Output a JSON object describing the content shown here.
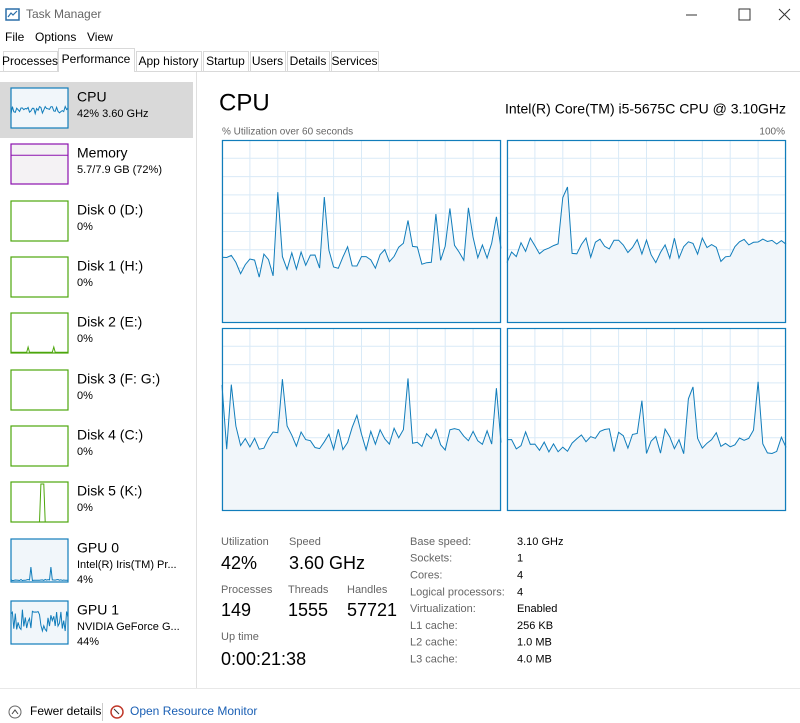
{
  "window": {
    "title": "Task Manager"
  },
  "menu": [
    "File",
    "Options",
    "View"
  ],
  "tabs": [
    "Processes",
    "Performance",
    "App history",
    "Startup",
    "Users",
    "Details",
    "Services"
  ],
  "sidebar": [
    {
      "name": "CPU",
      "lines": [
        "42% 3.60 GHz"
      ]
    },
    {
      "name": "Memory",
      "lines": [
        "5.7/7.9 GB (72%)"
      ]
    },
    {
      "name": "Disk 0 (D:)",
      "lines": [
        "0%"
      ]
    },
    {
      "name": "Disk 1 (H:)",
      "lines": [
        "0%"
      ]
    },
    {
      "name": "Disk 2 (E:)",
      "lines": [
        "0%"
      ]
    },
    {
      "name": "Disk 3 (F: G:)",
      "lines": [
        "0%"
      ]
    },
    {
      "name": "Disk 4 (C:)",
      "lines": [
        "0%"
      ]
    },
    {
      "name": "Disk 5 (K:)",
      "lines": [
        "0%"
      ]
    },
    {
      "name": "GPU 0",
      "lines": [
        "Intel(R) Iris(TM) Pr...",
        "4%"
      ]
    },
    {
      "name": "GPU 1",
      "lines": [
        "NVIDIA GeForce G...",
        "44%"
      ]
    }
  ],
  "main": {
    "title": "CPU",
    "cpu_name": "Intel(R) Core(TM) i5-5675C CPU @ 3.10GHz",
    "graph_label": "% Utilization over 60 seconds",
    "graph_max": "100%"
  },
  "stats": [
    {
      "label": "Utilization",
      "value": "42%"
    },
    {
      "label": "Speed",
      "value": "3.60 GHz"
    },
    {
      "label": "Processes",
      "value": 149
    },
    {
      "label": "Threads",
      "value": 1555
    },
    {
      "label": "Handles",
      "value": 57721
    },
    {
      "label": "Up time",
      "value": "0:00:21:38"
    }
  ],
  "specs": [
    {
      "label": "Base speed:",
      "value": "3.10 GHz"
    },
    {
      "label": "Sockets:",
      "value": 1
    },
    {
      "label": "Cores:",
      "value": 4
    },
    {
      "label": "Logical processors:",
      "value": 4
    },
    {
      "label": "Virtualization:",
      "value": "Enabled"
    },
    {
      "label": "L1 cache:",
      "value": "256 KB"
    },
    {
      "label": "L2 cache:",
      "value": "1.0 MB"
    },
    {
      "label": "L3 cache:",
      "value": "4.0 MB"
    }
  ],
  "footer": {
    "fewer": "Fewer details",
    "monitor": "Open Resource Monitor"
  }
}
